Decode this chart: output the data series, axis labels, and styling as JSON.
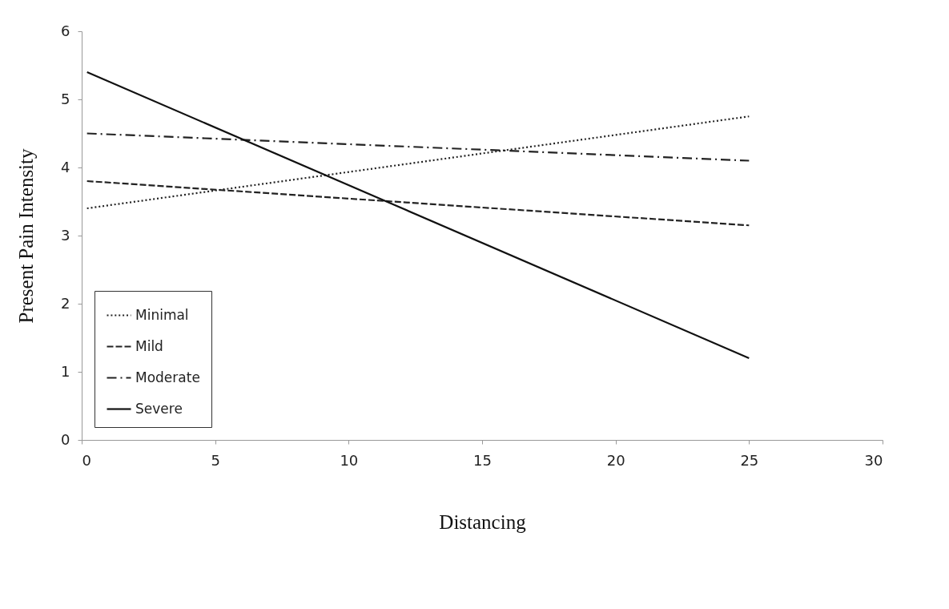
{
  "chart_data": {
    "type": "line",
    "xlabel": "Distancing",
    "ylabel": "Present Pain Intensity",
    "x": [
      0.2,
      25
    ],
    "xlim": [
      0,
      30
    ],
    "xticks": [
      0,
      5,
      10,
      15,
      20,
      25,
      30
    ],
    "ylim": [
      0,
      6
    ],
    "yticks": [
      0,
      1,
      2,
      3,
      4,
      5,
      6
    ],
    "grid": false,
    "legend": "bottom left",
    "marker": "none",
    "series": [
      {
        "name": "Minimal",
        "color": "#222222",
        "line_style": "dotted",
        "values": [
          3.4,
          4.75
        ]
      },
      {
        "name": "Mild",
        "color": "#222222",
        "line_style": "dashed",
        "values": [
          3.8,
          3.15
        ]
      },
      {
        "name": "Moderate",
        "color": "#222222",
        "line_style": "dashdot",
        "values": [
          4.5,
          4.1
        ]
      },
      {
        "name": "Severe",
        "color": "#111111",
        "line_style": "solid",
        "values": [
          5.4,
          1.2
        ]
      }
    ]
  }
}
